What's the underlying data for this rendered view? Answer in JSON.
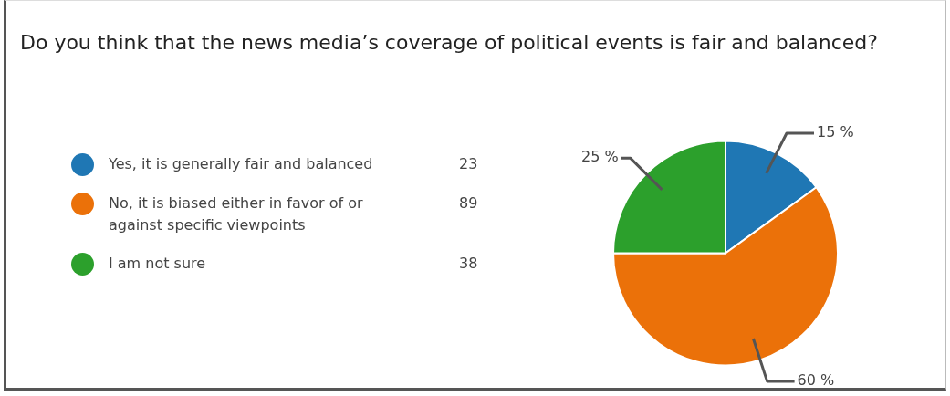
{
  "chart_data": {
    "type": "pie",
    "title": "Do you think that the news media’s coverage of political events is fair and balanced?",
    "categories": [
      "Yes, it is generally fair and balanced",
      "No, it is biased either in favor of or against specific viewpoints",
      "I am not sure"
    ],
    "values": [
      15,
      60,
      25
    ],
    "annotations": [
      "23",
      "89",
      "38"
    ],
    "colors": [
      "#1f77b4",
      "#eb7109",
      "#2ca02c"
    ],
    "value_labels": [
      "15 %",
      "60 %",
      "25 %"
    ],
    "legend": "left"
  }
}
